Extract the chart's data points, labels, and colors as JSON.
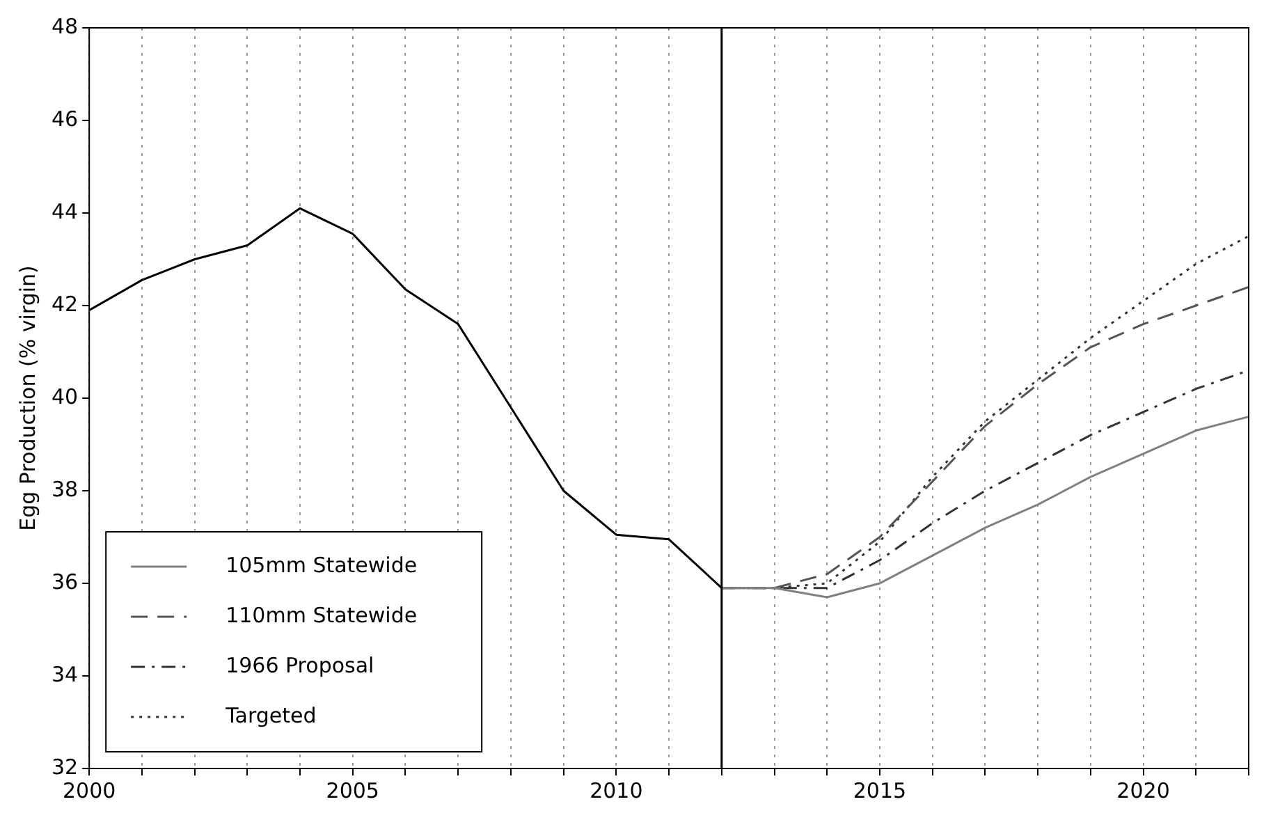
{
  "chart_data": {
    "type": "line",
    "ylabel": "Egg Production (% virgin)",
    "xlim": [
      2000,
      2022
    ],
    "ylim": [
      32,
      48
    ],
    "xticks": [
      2000,
      {
        "value": 2001,
        "label": null
      },
      {
        "value": 2002,
        "label": null
      },
      {
        "value": 2003,
        "label": null
      },
      {
        "value": 2004,
        "label": null
      },
      2005,
      {
        "value": 2006,
        "label": null
      },
      {
        "value": 2007,
        "label": null
      },
      {
        "value": 2008,
        "label": null
      },
      {
        "value": 2009,
        "label": null
      },
      2010,
      {
        "value": 2011,
        "label": null
      },
      {
        "value": 2012,
        "label": null
      },
      {
        "value": 2013,
        "label": null
      },
      {
        "value": 2014,
        "label": null
      },
      2015,
      {
        "value": 2016,
        "label": null
      },
      {
        "value": 2017,
        "label": null
      },
      {
        "value": 2018,
        "label": null
      },
      {
        "value": 2019,
        "label": null
      },
      2020,
      {
        "value": 2021,
        "label": null
      },
      {
        "value": 2022,
        "label": null
      }
    ],
    "yticks": [
      32,
      34,
      36,
      38,
      40,
      42,
      44,
      46,
      48
    ],
    "grid": "x",
    "legend": "bottom left",
    "ref_lines": [
      {
        "axis": "x",
        "value": 2012,
        "color": "#000000",
        "line_style": "solid"
      }
    ],
    "series": [
      {
        "color": "#000000",
        "line_style": "solid",
        "x": [
          2000,
          2001,
          2002,
          2003,
          2004,
          2005,
          2006,
          2007,
          2008,
          2009,
          2010,
          2011,
          2012
        ],
        "values": [
          41.9,
          42.55,
          43.0,
          43.3,
          44.1,
          43.55,
          42.35,
          41.6,
          39.8,
          38.0,
          37.05,
          36.95,
          35.9
        ]
      },
      {
        "name": "105mm Statewide",
        "color": "#808080",
        "line_style": "solid",
        "x": [
          2012,
          2013,
          2014,
          2015,
          2016,
          2017,
          2018,
          2019,
          2020,
          2021,
          2022
        ],
        "values": [
          35.9,
          35.9,
          35.7,
          36.0,
          36.6,
          37.2,
          37.7,
          38.3,
          38.8,
          39.3,
          39.6
        ]
      },
      {
        "name": "110mm Statewide",
        "color": "#555555",
        "line_style": "dashed",
        "x": [
          2012,
          2013,
          2014,
          2015,
          2016,
          2017,
          2018,
          2019,
          2020,
          2021,
          2022
        ],
        "values": [
          35.9,
          35.9,
          36.2,
          37.0,
          38.2,
          39.4,
          40.3,
          41.1,
          41.6,
          42.0,
          42.4
        ]
      },
      {
        "name": "1966 Proposal",
        "color": "#333333",
        "line_style": "dashdot",
        "x": [
          2012,
          2013,
          2014,
          2015,
          2016,
          2017,
          2018,
          2019,
          2020,
          2021,
          2022
        ],
        "values": [
          35.9,
          35.9,
          35.9,
          36.5,
          37.3,
          38.0,
          38.6,
          39.2,
          39.7,
          40.2,
          40.6
        ]
      },
      {
        "name": "Targeted",
        "color": "#333333",
        "line_style": "dotted",
        "x": [
          2012,
          2013,
          2014,
          2015,
          2016,
          2017,
          2018,
          2019,
          2020,
          2021,
          2022
        ],
        "values": [
          35.9,
          35.9,
          36.0,
          36.9,
          38.3,
          39.5,
          40.4,
          41.3,
          42.1,
          42.9,
          43.5
        ]
      }
    ]
  }
}
